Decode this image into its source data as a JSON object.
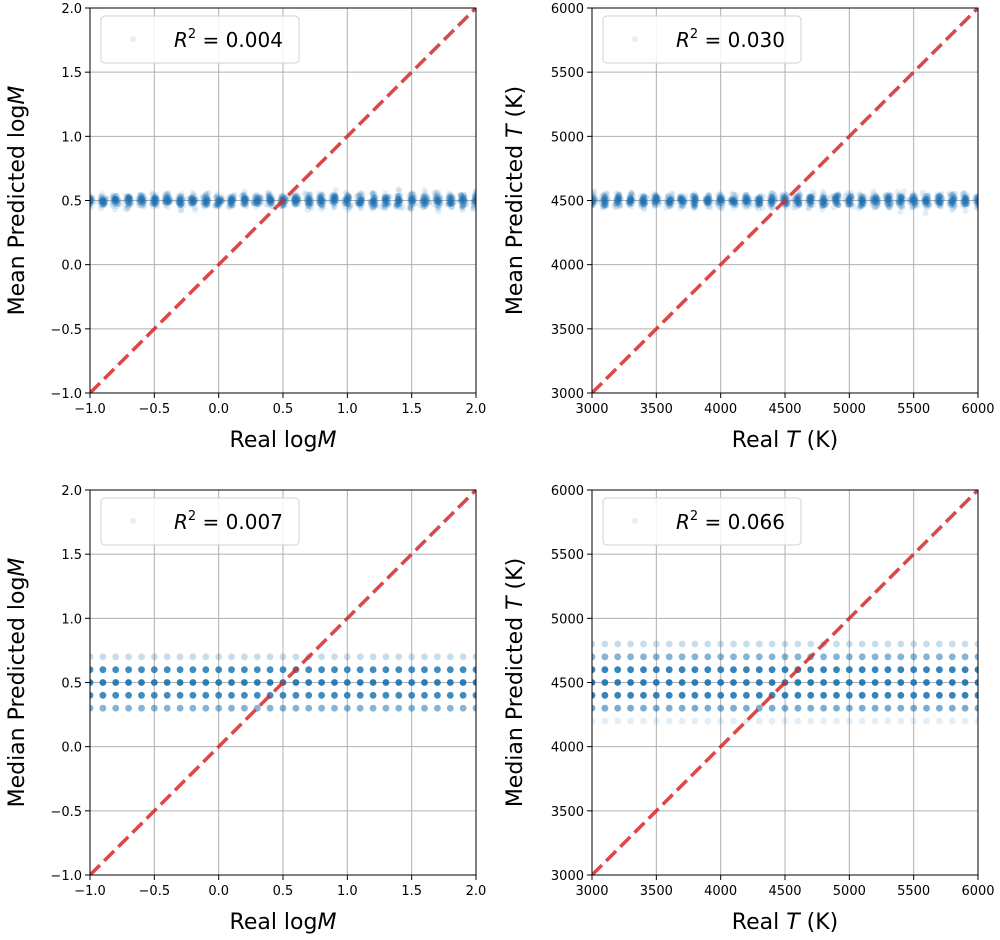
{
  "chart_data": [
    {
      "type": "scatter",
      "xlabel": "Real log",
      "xlabel_var": "M",
      "ylabel": "Mean Predicted log",
      "ylabel_var": "M",
      "xlim": [
        -1.0,
        2.0
      ],
      "ylim": [
        -1.0,
        2.0
      ],
      "xticks": [
        "−1.0",
        "−0.5",
        "0.0",
        "0.5",
        "1.0",
        "1.5",
        "2.0"
      ],
      "yticks": [
        "−1.0",
        "−0.5",
        "0.0",
        "0.5",
        "1.0",
        "1.5",
        "2.0"
      ],
      "legend": {
        "var": "R",
        "exp": "2",
        "text": " = 0.004",
        "placement": "upper-left"
      },
      "grid": true,
      "identity_line": {
        "from": [
          -1.0,
          -1.0
        ],
        "to": [
          2.0,
          2.0
        ],
        "color": "#d62728",
        "style": "dashed"
      },
      "point_color": "#1f77b4",
      "pattern": "mean",
      "x_columns": {
        "start": -1.0,
        "end": 2.0,
        "step": 0.1
      },
      "y_center": 0.5,
      "y_spread": 0.1
    },
    {
      "type": "scatter",
      "xlabel": "Real",
      "xlabel_var": "T",
      "xlabel_suffix": " (K)",
      "ylabel": "Mean Predicted",
      "ylabel_var": "T",
      "ylabel_suffix": " (K)",
      "xlim": [
        3000,
        6000
      ],
      "ylim": [
        3000,
        6000
      ],
      "xticks": [
        "3000",
        "3500",
        "4000",
        "4500",
        "5000",
        "5500",
        "6000"
      ],
      "yticks": [
        "3000",
        "3500",
        "4000",
        "4500",
        "5000",
        "5500",
        "6000"
      ],
      "legend": {
        "var": "R",
        "exp": "2",
        "text": " = 0.030",
        "placement": "upper-left"
      },
      "grid": true,
      "identity_line": {
        "from": [
          3000,
          3000
        ],
        "to": [
          6000,
          6000
        ],
        "color": "#d62728",
        "style": "dashed"
      },
      "point_color": "#1f77b4",
      "pattern": "mean",
      "x_columns": {
        "start": 3000,
        "end": 6000,
        "step": 100
      },
      "y_center": 4500,
      "y_spread": 100
    },
    {
      "type": "scatter",
      "xlabel": "Real log",
      "xlabel_var": "M",
      "ylabel": "Median Predicted log",
      "ylabel_var": "M",
      "xlim": [
        -1.0,
        2.0
      ],
      "ylim": [
        -1.0,
        2.0
      ],
      "xticks": [
        "−1.0",
        "−0.5",
        "0.0",
        "0.5",
        "1.0",
        "1.5",
        "2.0"
      ],
      "yticks": [
        "−1.0",
        "−0.5",
        "0.0",
        "0.5",
        "1.0",
        "1.5",
        "2.0"
      ],
      "legend": {
        "var": "R",
        "exp": "2",
        "text": " = 0.007",
        "placement": "upper-left"
      },
      "grid": true,
      "identity_line": {
        "from": [
          -1.0,
          -1.0
        ],
        "to": [
          2.0,
          2.0
        ],
        "color": "#d62728",
        "style": "dashed"
      },
      "point_color": "#1f77b4",
      "pattern": "median",
      "x_columns": {
        "start": -1.0,
        "end": 2.0,
        "step": 0.1
      },
      "y_levels": [
        {
          "y": 0.3,
          "opacity": 0.55
        },
        {
          "y": 0.4,
          "opacity": 0.85
        },
        {
          "y": 0.5,
          "opacity": 0.95
        },
        {
          "y": 0.6,
          "opacity": 0.85
        },
        {
          "y": 0.7,
          "opacity": 0.25
        }
      ]
    },
    {
      "type": "scatter",
      "xlabel": "Real",
      "xlabel_var": "T",
      "xlabel_suffix": " (K)",
      "ylabel": "Median Predicted",
      "ylabel_var": "T",
      "ylabel_suffix": " (K)",
      "xlim": [
        3000,
        6000
      ],
      "ylim": [
        3000,
        6000
      ],
      "xticks": [
        "3000",
        "3500",
        "4000",
        "4500",
        "5000",
        "5500",
        "6000"
      ],
      "yticks": [
        "3000",
        "3500",
        "4000",
        "4500",
        "5000",
        "5500",
        "6000"
      ],
      "legend": {
        "var": "R",
        "exp": "2",
        "text": " = 0.066",
        "placement": "upper-left"
      },
      "grid": true,
      "identity_line": {
        "from": [
          3000,
          3000
        ],
        "to": [
          6000,
          6000
        ],
        "color": "#d62728",
        "style": "dashed"
      },
      "point_color": "#1f77b4",
      "pattern": "median",
      "x_columns": {
        "start": 3000,
        "end": 6000,
        "step": 100
      },
      "y_levels": [
        {
          "y": 4200,
          "opacity": 0.12
        },
        {
          "y": 4300,
          "opacity": 0.6
        },
        {
          "y": 4400,
          "opacity": 0.9
        },
        {
          "y": 4500,
          "opacity": 0.95
        },
        {
          "y": 4600,
          "opacity": 0.9
        },
        {
          "y": 4700,
          "opacity": 0.55
        },
        {
          "y": 4800,
          "opacity": 0.25
        }
      ]
    }
  ]
}
